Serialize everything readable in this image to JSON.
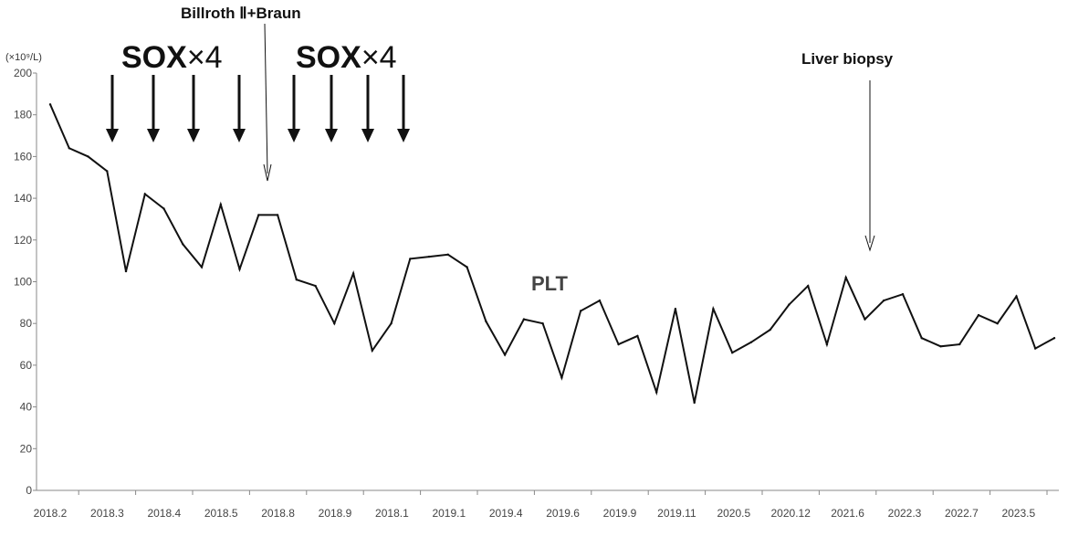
{
  "chart_data": {
    "type": "line",
    "ylabel": "(×10⁹/L)",
    "ylim": [
      0,
      200
    ],
    "yticks": [
      0,
      20,
      40,
      60,
      80,
      100,
      120,
      140,
      160,
      180,
      200
    ],
    "xticks": [
      "2018.2",
      "2018.3",
      "2018.4",
      "2018.5",
      "2018.8",
      "2018.9",
      "2018.1",
      "2019.1",
      "2019.4",
      "2019.6",
      "2019.9",
      "2019.11",
      "2020.5",
      "2020.12",
      "2021.6",
      "2022.3",
      "2022.7",
      "2023.5"
    ],
    "series": [
      {
        "name": "PLT",
        "values": [
          185,
          164,
          160,
          153,
          105,
          142,
          135,
          118,
          107,
          137,
          106,
          132,
          132,
          101,
          98,
          80,
          104,
          67,
          80,
          111,
          112,
          113,
          107,
          81,
          65,
          82,
          80,
          54,
          86,
          91,
          70,
          74,
          47,
          87,
          42,
          87,
          66,
          71,
          77,
          89,
          98,
          70,
          102,
          82,
          91,
          94,
          73,
          69,
          70,
          84,
          80,
          93,
          68,
          73
        ]
      }
    ],
    "annotations": [
      {
        "id": "sox1",
        "bold": "SOX",
        "rest": "×4"
      },
      {
        "id": "sox2",
        "bold": "SOX",
        "rest": "×4"
      },
      {
        "id": "surgery",
        "text": "Billroth Ⅱ+Braun"
      },
      {
        "id": "biopsy",
        "text": "Liver biopsy"
      }
    ],
    "grid": false,
    "legend": "none"
  }
}
